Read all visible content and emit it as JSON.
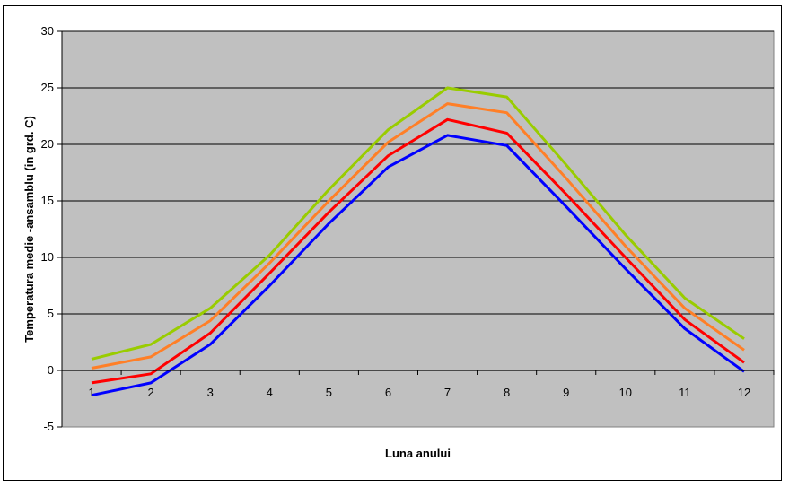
{
  "chart_data": {
    "type": "line",
    "xlabel": "Luna anului",
    "ylabel": "Temperatura medie -ansamblu (in grd. C)",
    "categories": [
      "1",
      "2",
      "3",
      "4",
      "5",
      "6",
      "7",
      "8",
      "9",
      "10",
      "11",
      "12"
    ],
    "ylim": [
      -5,
      30
    ],
    "yticks": [
      -5,
      0,
      5,
      10,
      15,
      20,
      25,
      30
    ],
    "grid": true,
    "plot_background": "#c0c0c0",
    "series": [
      {
        "color": "#0000ff",
        "values": [
          -2.2,
          -1.1,
          2.3,
          7.5,
          13.0,
          18.0,
          20.8,
          19.9,
          14.5,
          9.0,
          3.7,
          -0.1
        ]
      },
      {
        "color": "#ff0000",
        "values": [
          -1.1,
          -0.3,
          3.3,
          8.6,
          14.0,
          19.0,
          22.2,
          21.0,
          15.6,
          10.0,
          4.5,
          0.7
        ]
      },
      {
        "color": "#ff7f27",
        "values": [
          0.2,
          1.2,
          4.4,
          9.5,
          15.0,
          20.2,
          23.6,
          22.8,
          17.0,
          11.0,
          5.5,
          1.8
        ]
      },
      {
        "color": "#99cc00",
        "values": [
          1.0,
          2.3,
          5.5,
          10.2,
          16.0,
          21.3,
          25.0,
          24.2,
          18.2,
          12.0,
          6.4,
          2.8
        ]
      }
    ]
  }
}
